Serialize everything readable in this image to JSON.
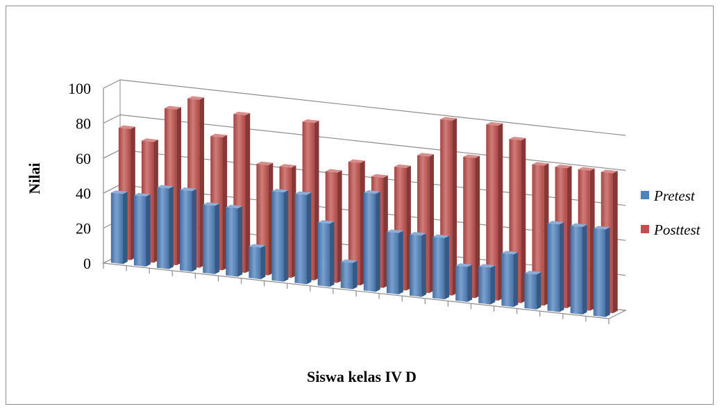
{
  "chart_data": {
    "type": "bar",
    "title": "",
    "xlabel": "Siswa kelas IV D",
    "ylabel": "Nilai",
    "ylim": [
      0,
      100
    ],
    "yticks": [
      "0",
      "20",
      "40",
      "60",
      "80",
      "100"
    ],
    "grid": true,
    "legend_position": "right",
    "categories": [
      "",
      "",
      "",
      "",
      "",
      "",
      "",
      "",
      "",
      "",
      "",
      "",
      "",
      "",
      "",
      "",
      "",
      "",
      "",
      "",
      "",
      ""
    ],
    "series": [
      {
        "name": "Pretest",
        "color": "#4f81bd",
        "values": [
          40,
          40,
          46,
          46,
          39,
          39,
          18,
          51,
          51,
          36,
          15,
          56,
          35,
          35,
          35,
          20,
          21,
          30,
          20,
          50,
          50,
          50
        ]
      },
      {
        "name": "Posttest",
        "color": "#c0504d",
        "values": [
          75,
          69,
          89,
          96,
          76,
          90,
          63,
          63,
          90,
          63,
          70,
          63,
          70,
          78,
          100,
          80,
          100,
          93,
          80,
          80,
          80,
          80
        ]
      }
    ]
  }
}
